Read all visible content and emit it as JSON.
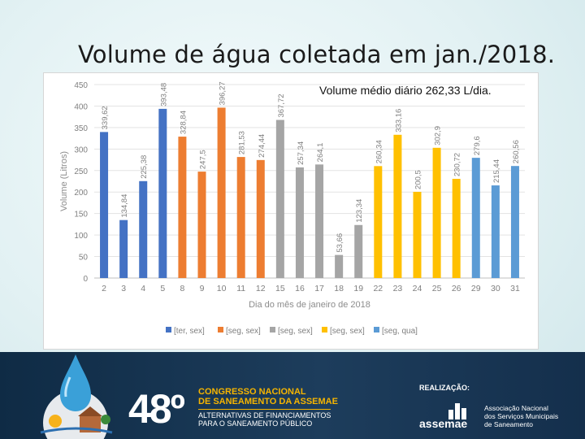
{
  "slide": {
    "title": "Volume de água coletada em jan./2018.",
    "average_note": "Volume médio diário 262,33 L/dia."
  },
  "chart_data": {
    "type": "bar",
    "categories": [
      "2",
      "3",
      "4",
      "5",
      "8",
      "9",
      "10",
      "11",
      "12",
      "15",
      "16",
      "17",
      "18",
      "19",
      "22",
      "23",
      "24",
      "25",
      "26",
      "29",
      "30",
      "31"
    ],
    "values": [
      339.62,
      134.84,
      225.38,
      393.48,
      328.84,
      247.5,
      396.27,
      281.53,
      274.44,
      367.72,
      257.34,
      264.1,
      53.66,
      123.34,
      260.34,
      333.16,
      200.5,
      302.9,
      230.72,
      279.6,
      215.44,
      260.56
    ],
    "value_labels": [
      "339,62",
      "134,84",
      "225,38",
      "393,48",
      "328,84",
      "247,5",
      "396,27",
      "281,53",
      "274,44",
      "367,72",
      "257,34",
      "264,1",
      "53,66",
      "123,34",
      "260,34",
      "333,16",
      "200,5",
      "302,9",
      "230,72",
      "279,6",
      "215,44",
      "260,56"
    ],
    "group": [
      0,
      0,
      0,
      0,
      1,
      1,
      1,
      1,
      1,
      2,
      2,
      2,
      2,
      2,
      3,
      3,
      3,
      3,
      3,
      4,
      4,
      4
    ],
    "legend": [
      "[ter, sex]",
      "[seg, sex]",
      "[seg, sex]",
      "[seg, sex]",
      "[seg, qua]"
    ],
    "colors": [
      "#4472c4",
      "#ed7d31",
      "#a5a5a5",
      "#ffc000",
      "#5b9bd5"
    ],
    "yticks": [
      "0",
      "50",
      "100",
      "150",
      "200",
      "250",
      "300",
      "350",
      "400",
      "450"
    ],
    "ylim": [
      0,
      450
    ],
    "xlabel": "Dia do mês de janeiro de 2018",
    "ylabel": "Volume (Litros)",
    "grid": true,
    "legend_position": "bottom"
  },
  "footer": {
    "congress_number": "48º",
    "congress_name_line1": "CONGRESSO NACIONAL",
    "congress_name_line2": "DE SANEAMENTO DA ASSEMAE",
    "congress_sub_line1": "ALTERNATIVAS DE FINANCIAMENTOS",
    "congress_sub_line2": "PARA O SANEAMENTO PÚBLICO",
    "realizacao": "REALIZAÇÃO:",
    "assemae_brand": "assemae",
    "assemae_line1": "Associação Nacional",
    "assemae_line2": "dos Serviços Municipais",
    "assemae_line3": "de Saneamento"
  }
}
